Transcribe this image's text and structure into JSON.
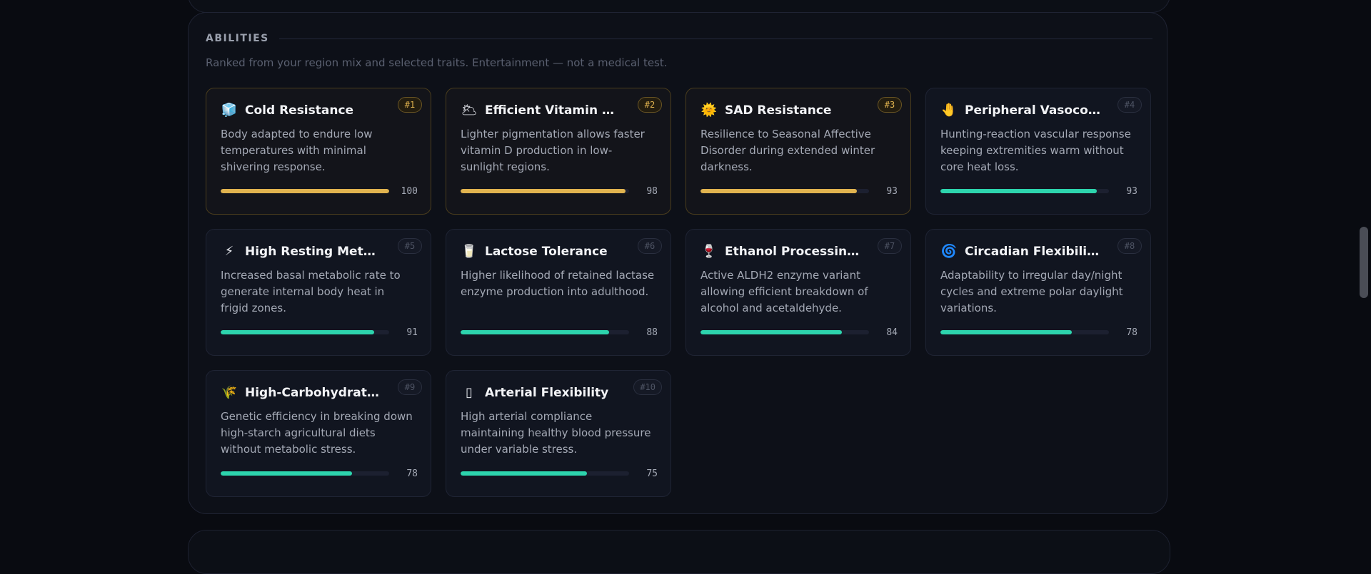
{
  "section": {
    "title": "ABILITIES",
    "subtitle": "Ranked from your region mix and selected traits. Entertainment — not a medical test."
  },
  "abilities": [
    {
      "rank": "#1",
      "icon": "ice-cube-icon",
      "glyph": "🧊",
      "title": "Cold Resistance",
      "desc": "Body adapted to endure low temperatures with minimal shivering response.",
      "score": 100,
      "tier": "gold"
    },
    {
      "rank": "#2",
      "icon": "sun-behind-cloud-icon",
      "glyph": "🌥",
      "title": "Efficient Vitamin D Sy…",
      "desc": "Lighter pigmentation allows faster vitamin D production in low-sunlight regions.",
      "score": 98,
      "tier": "gold"
    },
    {
      "rank": "#3",
      "icon": "sun-icon",
      "glyph": "🌞",
      "title": "SAD Resistance",
      "desc": "Resilience to Seasonal Affective Disorder during extended winter darkness.",
      "score": 93,
      "tier": "gold"
    },
    {
      "rank": "#4",
      "icon": "hand-icon",
      "glyph": "🤚",
      "title": "Peripheral Vasoconstr…",
      "desc": "Hunting-reaction vascular response keeping extremities warm without core heat loss.",
      "score": 93,
      "tier": "teal"
    },
    {
      "rank": "#5",
      "icon": "lightning-icon",
      "glyph": "⚡",
      "title": "High Resting Metaboli…",
      "desc": "Increased basal metabolic rate to generate internal body heat in frigid zones.",
      "score": 91,
      "tier": "teal"
    },
    {
      "rank": "#6",
      "icon": "milk-glass-icon",
      "glyph": "🥛",
      "title": "Lactose Tolerance",
      "desc": "Higher likelihood of retained lactase enzyme production into adulthood.",
      "score": 88,
      "tier": "teal"
    },
    {
      "rank": "#7",
      "icon": "wine-glass-icon",
      "glyph": "🍷",
      "title": "Ethanol Processing Effi…",
      "desc": "Active ALDH2 enzyme variant allowing efficient breakdown of alcohol and acetaldehyde.",
      "score": 84,
      "tier": "teal"
    },
    {
      "rank": "#8",
      "icon": "cyclone-icon",
      "glyph": "🌀",
      "title": "Circadian Flexibility",
      "desc": "Adaptability to irregular day/night cycles and extreme polar daylight variations.",
      "score": 78,
      "tier": "teal"
    },
    {
      "rank": "#9",
      "icon": "sheaf-of-rice-icon",
      "glyph": "🌾",
      "title": "High-Carbohydrate M…",
      "desc": "Genetic efficiency in breaking down high-starch agricultural diets without metabolic stress.",
      "score": 78,
      "tier": "teal"
    },
    {
      "rank": "#10",
      "icon": "missing-glyph-icon",
      "glyph": "▯",
      "title": "Arterial Flexibility",
      "desc": "High arterial compliance maintaining healthy blood pressure under variable stress.",
      "score": 75,
      "tier": "teal"
    }
  ]
}
